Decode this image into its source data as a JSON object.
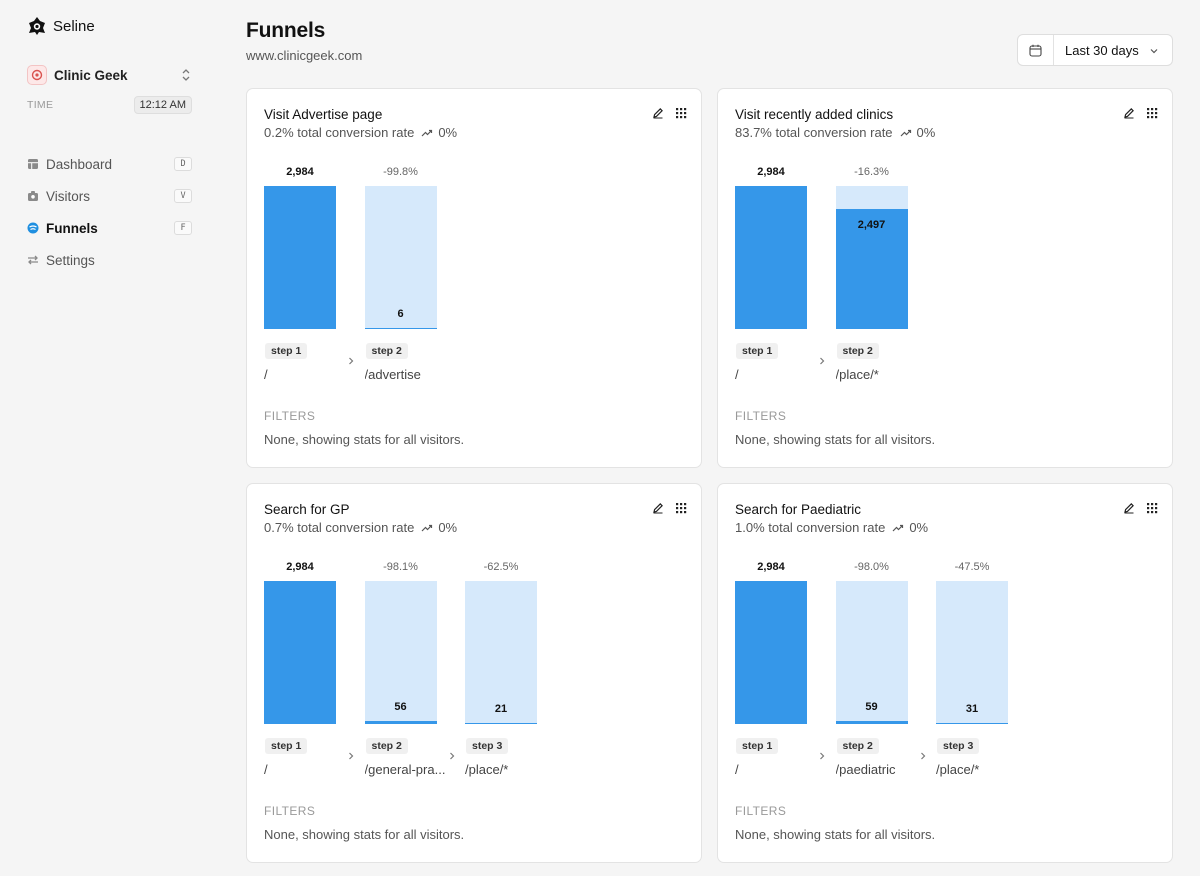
{
  "brand": {
    "name": "Seline"
  },
  "site": {
    "name": "Clinic Geek"
  },
  "time": {
    "label": "TIME",
    "value": "12:12 AM"
  },
  "nav": [
    {
      "label": "Dashboard",
      "key": "D",
      "icon": "dashboard-icon",
      "active": false
    },
    {
      "label": "Visitors",
      "key": "V",
      "icon": "visitors-icon",
      "active": false
    },
    {
      "label": "Funnels",
      "key": "F",
      "icon": "funnels-icon",
      "active": true
    },
    {
      "label": "Settings",
      "icon": "settings-icon",
      "active": false
    }
  ],
  "header": {
    "title": "Funnels",
    "subtitle": "www.clinicgeek.com"
  },
  "date_range": {
    "label": "Last 30 days"
  },
  "colors": {
    "bar": "#3597e9",
    "bar_bg": "#d6e9fb",
    "accent": "#1f8fe0"
  },
  "funnels": [
    {
      "title": "Visit Advertise page",
      "conversion": "0.2% total conversion rate",
      "trend": "0%",
      "steps": [
        {
          "badge": "step 1",
          "path": "/",
          "count": "2,984",
          "drop": "",
          "value": 2984
        },
        {
          "badge": "step 2",
          "path": "/advertise",
          "count": "6",
          "drop": "-99.8%",
          "value": 6
        }
      ],
      "filters_label": "FILTERS",
      "filters_text": "None, showing stats for all visitors."
    },
    {
      "title": "Visit recently added clinics",
      "conversion": "83.7% total conversion rate",
      "trend": "0%",
      "steps": [
        {
          "badge": "step 1",
          "path": "/",
          "count": "2,984",
          "drop": "",
          "value": 2984
        },
        {
          "badge": "step 2",
          "path": "/place/*",
          "count": "2,497",
          "drop": "-16.3%",
          "value": 2497
        }
      ],
      "filters_label": "FILTERS",
      "filters_text": "None, showing stats for all visitors."
    },
    {
      "title": "Search for GP",
      "conversion": "0.7% total conversion rate",
      "trend": "0%",
      "steps": [
        {
          "badge": "step 1",
          "path": "/",
          "count": "2,984",
          "drop": "",
          "value": 2984
        },
        {
          "badge": "step 2",
          "path": "/general-pra...",
          "count": "56",
          "drop": "-98.1%",
          "value": 56
        },
        {
          "badge": "step 3",
          "path": "/place/*",
          "count": "21",
          "drop": "-62.5%",
          "value": 21
        }
      ],
      "filters_label": "FILTERS",
      "filters_text": "None, showing stats for all visitors."
    },
    {
      "title": "Search for Paediatric",
      "conversion": "1.0% total conversion rate",
      "trend": "0%",
      "steps": [
        {
          "badge": "step 1",
          "path": "/",
          "count": "2,984",
          "drop": "",
          "value": 2984
        },
        {
          "badge": "step 2",
          "path": "/paediatric",
          "count": "59",
          "drop": "-98.0%",
          "value": 59
        },
        {
          "badge": "step 3",
          "path": "/place/*",
          "count": "31",
          "drop": "-47.5%",
          "value": 31
        }
      ],
      "filters_label": "FILTERS",
      "filters_text": "None, showing stats for all visitors."
    }
  ]
}
